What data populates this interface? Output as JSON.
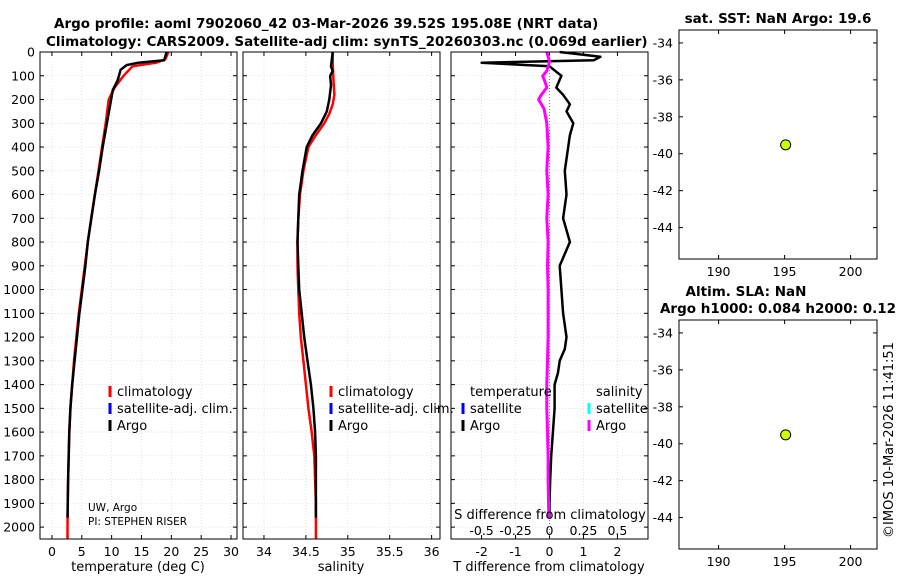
{
  "header": {
    "title_line1": "Argo profile: aoml 7902060_42 03-Mar-2026 39.52S 195.08E (NRT data)",
    "title_line2": "Climatology: CARS2009. Satellite-adj clim: synTS_20260303.nc (0.069d earlier)"
  },
  "colors": {
    "climatology": "#ff0000",
    "satellite": "#0000ff",
    "argo": "#000000",
    "salinity_argo": "#ff00ff",
    "salinity_satellite": "#00ffff",
    "marker": "#ccff00"
  },
  "chart_data": [
    {
      "type": "line",
      "id": "temperature",
      "xlabel": "temperature (deg C)",
      "xlim": [
        -2,
        31
      ],
      "xticks": [
        0,
        5,
        10,
        15,
        20,
        25,
        30
      ],
      "xticklabels": [
        "0",
        "5",
        "10",
        "15",
        "20",
        "25",
        "30"
      ],
      "ylim": [
        0,
        2050
      ],
      "y_reversed": true,
      "yticks": [
        0,
        100,
        200,
        300,
        400,
        500,
        600,
        700,
        800,
        900,
        1000,
        1100,
        1200,
        1300,
        1400,
        1500,
        1600,
        1700,
        1800,
        1900,
        2000
      ],
      "yticklabels": [
        "0",
        "100",
        "200",
        "300",
        "400",
        "500",
        "600",
        "700",
        "800",
        "900",
        "1000",
        "1100",
        "1200",
        "1300",
        "1400",
        "1500",
        "1600",
        "1700",
        "1800",
        "1900",
        "2000"
      ],
      "legend": [
        "climatology",
        "satellite-adj. clim.",
        "Argo"
      ],
      "annotation": [
        "UW, Argo",
        "PI: STEPHEN RISER"
      ],
      "series": [
        {
          "name": "climatology",
          "color": "#ff0000",
          "x": [
            19.5,
            19.0,
            17.5,
            13.5,
            12.0,
            10.5,
            9.5,
            9.0,
            8.4,
            7.8,
            7.2,
            6.6,
            6.0,
            5.5,
            5.0,
            4.5,
            4.1,
            3.7,
            3.4,
            3.1,
            2.9,
            2.8,
            2.7,
            2.65,
            2.6,
            2.6
          ],
          "y": [
            0,
            30,
            45,
            60,
            100,
            150,
            200,
            300,
            400,
            500,
            600,
            700,
            800,
            900,
            1000,
            1100,
            1200,
            1300,
            1400,
            1500,
            1600,
            1700,
            1800,
            1900,
            2000,
            2050
          ]
        },
        {
          "name": "Argo",
          "color": "#000000",
          "x": [
            19.2,
            18.8,
            14.5,
            12.5,
            11.5,
            11.0,
            10.2,
            9.2,
            8.5,
            7.9,
            7.2,
            6.6,
            6.0,
            5.6,
            5.1,
            4.6,
            4.2,
            3.8,
            3.4,
            3.1,
            2.9,
            2.8,
            2.7,
            2.6
          ],
          "y": [
            0,
            35,
            45,
            55,
            75,
            120,
            160,
            300,
            400,
            500,
            600,
            700,
            800,
            900,
            1000,
            1100,
            1200,
            1300,
            1400,
            1500,
            1600,
            1700,
            1800,
            1960
          ]
        }
      ]
    },
    {
      "type": "line",
      "id": "salinity",
      "xlabel": "salinity",
      "xlim": [
        33.75,
        36.1
      ],
      "xticks": [
        34,
        34.5,
        35,
        35.5,
        36
      ],
      "xticklabels": [
        "34",
        "34.5",
        "35",
        "35.5",
        "36"
      ],
      "ylim": [
        0,
        2050
      ],
      "y_reversed": true,
      "legend": [
        "climatology",
        "satellite-adj. clim.",
        "Argo"
      ],
      "series": [
        {
          "name": "climatology",
          "color": "#ff0000",
          "x": [
            34.82,
            34.82,
            34.83,
            34.84,
            34.82,
            34.78,
            34.72,
            34.62,
            34.53,
            34.47,
            34.43,
            34.41,
            34.4,
            34.4,
            34.41,
            34.42,
            34.44,
            34.47,
            34.5,
            34.53,
            34.57,
            34.6,
            34.61,
            34.62,
            34.62,
            34.62
          ],
          "y": [
            0,
            50,
            120,
            180,
            220,
            260,
            300,
            350,
            400,
            500,
            600,
            700,
            800,
            900,
            1000,
            1100,
            1200,
            1300,
            1400,
            1500,
            1600,
            1700,
            1800,
            1900,
            2000,
            2050
          ]
        },
        {
          "name": "Argo",
          "color": "#000000",
          "x": [
            34.82,
            34.81,
            34.8,
            34.82,
            34.79,
            34.8,
            34.78,
            34.75,
            34.68,
            34.58,
            34.51,
            34.46,
            34.42,
            34.41,
            34.4,
            34.41,
            34.42,
            34.45,
            34.48,
            34.52,
            34.56,
            34.59,
            34.61,
            34.62,
            34.62
          ],
          "y": [
            0,
            30,
            60,
            80,
            100,
            140,
            200,
            250,
            300,
            350,
            400,
            500,
            600,
            700,
            800,
            900,
            1000,
            1100,
            1200,
            1300,
            1400,
            1500,
            1600,
            1700,
            1960
          ]
        }
      ]
    },
    {
      "type": "line",
      "id": "difference",
      "xlabel": "T difference from climatology",
      "xlim": [
        -2.9,
        2.9
      ],
      "xticks": [
        -2,
        -1,
        0,
        1,
        2
      ],
      "xticklabels": [
        "-2",
        "-1",
        "0",
        "1",
        "2"
      ],
      "top_axis_label": "S difference from climatology",
      "top_xticks": [
        -0.5,
        -0.25,
        0,
        0.25,
        0.5
      ],
      "top_xticklabels": [
        "-0.5",
        "-0.25",
        "0",
        "0.25",
        "0.5"
      ],
      "ylim": [
        0,
        2050
      ],
      "y_reversed": true,
      "legend_temperature_title": "temperature",
      "legend_salinity_title": "salinity",
      "legend_temperature": [
        "satellite",
        "Argo"
      ],
      "legend_salinity": [
        "satellite",
        "Argo"
      ],
      "series": [
        {
          "name": "T difference (Argo)",
          "color": "#000000",
          "x": [
            0.3,
            1.5,
            1.3,
            -2.0,
            0.0,
            0.35,
            0.2,
            0.4,
            0.6,
            0.5,
            0.7,
            0.6,
            0.55,
            0.45,
            0.5,
            0.4,
            0.6,
            0.3,
            0.35,
            0.4,
            0.5,
            0.45,
            0.3,
            0.25,
            0.15,
            0.15,
            0.1,
            0.05,
            0.02,
            0.0,
            0.0
          ],
          "y": [
            0,
            20,
            35,
            45,
            60,
            100,
            150,
            180,
            220,
            250,
            300,
            350,
            400,
            500,
            600,
            700,
            800,
            900,
            1000,
            1100,
            1200,
            1250,
            1300,
            1350,
            1400,
            1500,
            1600,
            1700,
            1800,
            1900,
            1960
          ]
        },
        {
          "name": "S difference (Argo)",
          "color": "#ff00ff",
          "x": [
            -0.02,
            0.0,
            -0.02,
            -0.05,
            -0.03,
            -0.02,
            -0.06,
            -0.08,
            -0.04,
            -0.02,
            -0.01,
            -0.02,
            -0.01,
            -0.02,
            -0.01,
            -0.015,
            -0.01,
            -0.01,
            -0.01,
            -0.015,
            -0.02,
            -0.02,
            -0.015,
            -0.01,
            -0.01,
            -0.005
          ],
          "y": [
            0,
            40,
            80,
            100,
            130,
            150,
            180,
            200,
            240,
            300,
            400,
            500,
            600,
            700,
            800,
            900,
            1000,
            1100,
            1200,
            1300,
            1400,
            1500,
            1600,
            1700,
            1800,
            1960
          ]
        }
      ]
    },
    {
      "type": "scatter",
      "id": "sst_map",
      "title": "sat. SST: NaN Argo: 19.6",
      "xlim": [
        187,
        202
      ],
      "ylim": [
        -45.7,
        -33.3
      ],
      "xticks": [
        190,
        195,
        200
      ],
      "xticklabels": [
        "190",
        "195",
        "200"
      ],
      "yticks": [
        -34,
        -36,
        -38,
        -40,
        -42,
        -44
      ],
      "yticklabels": [
        "-34",
        "-36",
        "-38",
        "-40",
        "-42",
        "-44"
      ],
      "points": [
        {
          "x": 195.08,
          "y": -39.52
        }
      ]
    },
    {
      "type": "scatter",
      "id": "sla_map",
      "title_line1": "Altim. SLA: NaN",
      "title_line2": "Argo h1000: 0.084 h2000: 0.12",
      "xlim": [
        187,
        202
      ],
      "ylim": [
        -45.7,
        -33.3
      ],
      "xticks": [
        190,
        195,
        200
      ],
      "xticklabels": [
        "190",
        "195",
        "200"
      ],
      "yticks": [
        -34,
        -36,
        -38,
        -40,
        -42,
        -44
      ],
      "yticklabels": [
        "-34",
        "-36",
        "-38",
        "-40",
        "-42",
        "-44"
      ],
      "points": [
        {
          "x": 195.08,
          "y": -39.52
        }
      ]
    }
  ],
  "footer": {
    "copyright": "©IMOS 10-Mar-2026 11:41:51"
  }
}
